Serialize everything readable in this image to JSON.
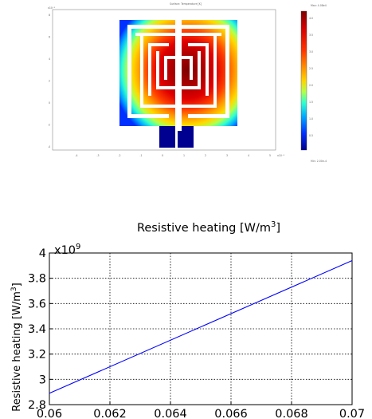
{
  "chart_data": [
    {
      "type": "heatmap",
      "title": "Surface: Temperature [K]",
      "subtitle": "",
      "colorbar": {
        "max_label": "Max: 4.08e4",
        "min_label": "Min: 2.00e-4",
        "ticks": [
          "4.0",
          "3.5",
          "3.0",
          "2.5",
          "2.0",
          "1.5",
          "1.0",
          "0.5"
        ],
        "palette": [
          "#7f0000",
          "#d40000",
          "#ff3300",
          "#ff8c00",
          "#ffd400",
          "#b4ff4a",
          "#30ffd0",
          "#00a8ff",
          "#0030ff",
          "#00008a"
        ]
      },
      "x_ticks": [
        "-4",
        "-3",
        "-2",
        "-1",
        "0",
        "1",
        "2",
        "3",
        "4",
        "5"
      ],
      "y_ticks": [
        "8",
        "6",
        "4",
        "2",
        "0",
        "-2",
        "-4"
      ],
      "x_exponent": "x10⁻³",
      "y_exponent": "x10⁻³"
    },
    {
      "type": "line",
      "title": "Resistive heating [W/m",
      "title_sup": "3",
      "title_tail": "]",
      "xlabel": "",
      "ylabel": "Resistive heating [W/m",
      "ylabel_sup": "3",
      "ylabel_tail": "]",
      "y_exponent_base": "x10",
      "y_exponent_power": "9",
      "xlim": [
        0.06,
        0.07
      ],
      "ylim": [
        2.8,
        4.0
      ],
      "x_tick_labels": [
        "0.06",
        "0.062",
        "0.064",
        "0.066",
        "0.068",
        "0.07"
      ],
      "x_tick_values": [
        0.06,
        0.062,
        0.064,
        0.066,
        0.068,
        0.07
      ],
      "y_tick_labels": [
        "2.8",
        "3",
        "3.2",
        "3.4",
        "3.6",
        "3.8",
        "4"
      ],
      "y_tick_values": [
        2.8,
        3.0,
        3.2,
        3.4,
        3.6,
        3.8,
        4.0
      ],
      "grid": true,
      "series": [
        {
          "color": "#0000ff",
          "x": [
            0.06,
            0.07
          ],
          "y": [
            2.89,
            3.94
          ]
        }
      ]
    }
  ]
}
